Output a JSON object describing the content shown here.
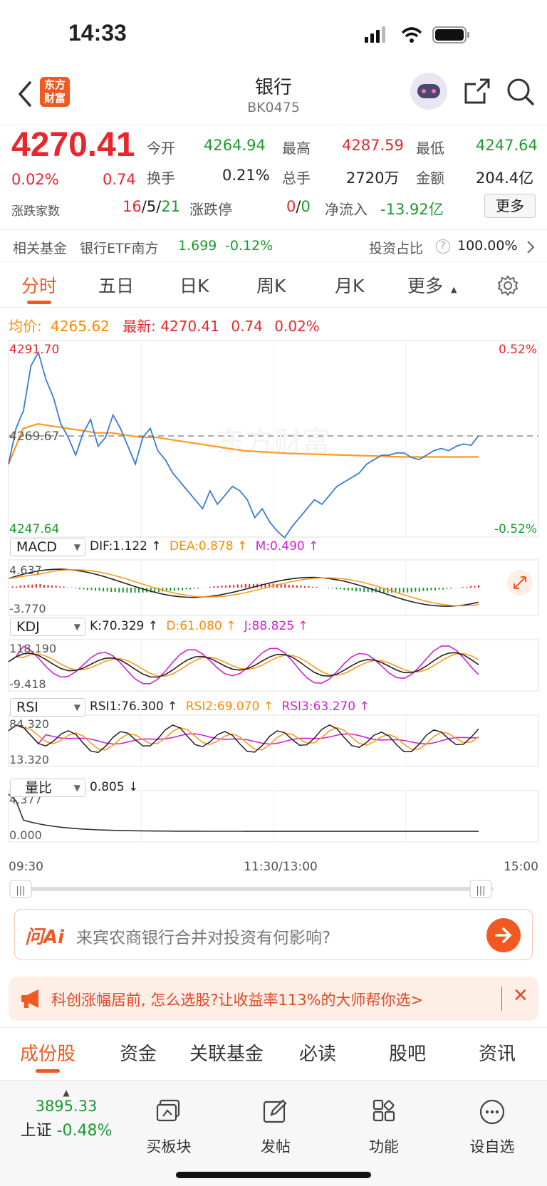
{
  "status": {
    "time": "14:33"
  },
  "nav": {
    "logo_line1": "东方",
    "logo_line2": "财富",
    "title": "银行",
    "code": "BK0475"
  },
  "quote": {
    "price": "4270.41",
    "change_pct": "0.02%",
    "change": "0.74",
    "open_label": "今开",
    "open": "4264.94",
    "high_label": "最高",
    "high": "4287.59",
    "low_label": "最低",
    "low": "4247.64",
    "turnover_label": "换手",
    "turnover": "0.21%",
    "volume_label": "总手",
    "volume": "2720万",
    "amount_label": "金额",
    "amount": "204.4亿",
    "updown_label": "涨跌家数",
    "up": "16",
    "sep1": "/",
    "flat": "5",
    "sep2": "/",
    "down": "21",
    "limit_label": "涨跌停",
    "limit_up": "0",
    "limit_sep": "/",
    "limit_down": "0",
    "netflow_label": "净流入",
    "netflow": "-13.92亿",
    "more_button": "更多"
  },
  "fund": {
    "label": "相关基金",
    "name": "银行ETF南方",
    "price": "1.699",
    "change": "-0.12%",
    "ratio_label": "投资占比",
    "ratio": "100.00%"
  },
  "tabs": [
    {
      "label": "分时",
      "active": true
    },
    {
      "label": "五日"
    },
    {
      "label": "日K"
    },
    {
      "label": "周K"
    },
    {
      "label": "月K"
    },
    {
      "label": "更多"
    }
  ],
  "info": {
    "avg_label": "均价:",
    "avg": "4265.62",
    "latest_label": "最新:",
    "latest": "4270.41",
    "chg": "0.74",
    "pct": "0.02%"
  },
  "chart_data": {
    "type": "line",
    "price_axis": {
      "top": "4291.70",
      "mid": "4269.67",
      "bottom": "4247.64",
      "top_pct": "0.52%",
      "bottom_pct": "-0.52%"
    },
    "ylim": [
      4247.64,
      4291.7
    ],
    "prev_close": 4269.67,
    "x_labels": [
      "09:30",
      "11:30/13:00",
      "15:00"
    ],
    "price": [
      4264,
      4272,
      4276,
      4286,
      4289,
      4283,
      4279,
      4273,
      4270,
      4266,
      4271,
      4274,
      4268,
      4270,
      4275,
      4272,
      4268,
      4264,
      4270,
      4272,
      4267,
      4265,
      4262,
      4260,
      4258,
      4256,
      4254,
      4258,
      4255,
      4257,
      4259,
      4258,
      4256,
      4252,
      4254,
      4251,
      4249,
      4247.5,
      4250,
      4252,
      4254,
      4256,
      4255,
      4257,
      4259,
      4260,
      4261,
      4262,
      4264,
      4265,
      4266,
      4266,
      4266.5,
      4266.5,
      4265.5,
      4265,
      4266,
      4267,
      4267.5,
      4267,
      4268,
      4268.5,
      4268.2,
      4270.4
    ],
    "avg": [
      4264,
      4272,
      4273,
      4272.5,
      4272,
      4271.5,
      4271,
      4271,
      4270.5,
      4270,
      4270,
      4269.5,
      4269,
      4268.5,
      4268,
      4267.5,
      4267,
      4266.8,
      4266.6,
      4266.4,
      4266.3,
      4266.2,
      4266.1,
      4266,
      4265.9,
      4265.8,
      4265.7,
      4265.6,
      4265.6,
      4265.6,
      4265.6,
      4265.6,
      4265.62
    ],
    "macd": {
      "label": "MACD",
      "dif": "DIF:1.122",
      "dea": "DEA:0.878",
      "m": "M:0.490",
      "top": "4.637",
      "bottom": "-3.770"
    },
    "kdj": {
      "label": "KDJ",
      "k": "K:70.329",
      "d": "D:61.080",
      "j": "J:88.825",
      "top": "118.190",
      "bottom": "-9.418"
    },
    "rsi": {
      "label": "RSI",
      "rsi1": "RSI1:76.300",
      "rsi2": "RSI2:69.070",
      "rsi3": "RSI3:63.270",
      "top": "84.320",
      "bottom": "13.320"
    },
    "volratio": {
      "label": "量比",
      "value": "0.805",
      "top": "4.377",
      "bottom": "0.000"
    },
    "watermark": "东方财富"
  },
  "ai": {
    "logo": "问Ai",
    "placeholder": "来宾农商银行合并对投资有何影响?"
  },
  "promo": {
    "text": "科创涨幅居前, 怎么选股?让收益率113%的大师帮你选>"
  },
  "subtabs": [
    "成份股",
    "资金",
    "关联基金",
    "必读",
    "股吧",
    "资讯"
  ],
  "bottom": {
    "index_value": "3895.33",
    "index_name": "上证",
    "index_change": "-0.48%",
    "items": [
      "买板块",
      "发帖",
      "功能",
      "设自选"
    ]
  },
  "colors": {
    "red": "#e8262b",
    "green": "#1a9b2e",
    "orange": "#ff8a00",
    "brand": "#f05a22"
  }
}
